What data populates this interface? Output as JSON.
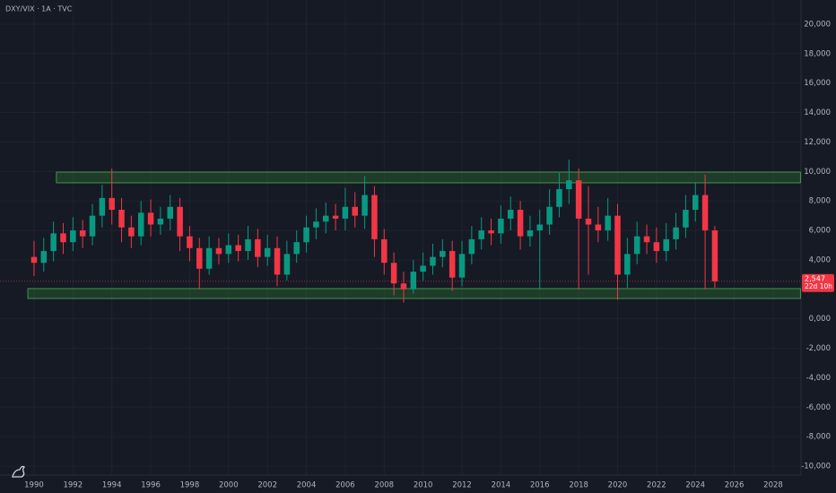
{
  "chart_data": {
    "type": "candlestick",
    "title": "DXY/VIX · 1A · TVC",
    "x": [
      1990.0,
      1990.5,
      1991.0,
      1991.5,
      1992.0,
      1992.5,
      1993.0,
      1993.5,
      1994.0,
      1994.5,
      1995.0,
      1995.5,
      1996.0,
      1996.5,
      1997.0,
      1997.5,
      1998.0,
      1998.5,
      1999.0,
      1999.5,
      2000.0,
      2000.5,
      2001.0,
      2001.5,
      2002.0,
      2002.5,
      2003.0,
      2003.5,
      2004.0,
      2004.5,
      2005.0,
      2005.5,
      2006.0,
      2006.5,
      2007.0,
      2007.5,
      2008.0,
      2008.5,
      2009.0,
      2009.5,
      2010.0,
      2010.5,
      2011.0,
      2011.5,
      2012.0,
      2012.5,
      2013.0,
      2013.5,
      2014.0,
      2014.5,
      2015.0,
      2015.5,
      2016.0,
      2016.5,
      2017.0,
      2017.5,
      2018.0,
      2018.5,
      2019.0,
      2019.5,
      2020.0,
      2020.5,
      2021.0,
      2021.5,
      2022.0,
      2022.5,
      2023.0,
      2023.5,
      2024.0,
      2024.5,
      2025.0
    ],
    "open": [
      4200,
      3800,
      4600,
      5800,
      5200,
      6000,
      5600,
      7000,
      8200,
      7400,
      6200,
      5600,
      7200,
      6400,
      6800,
      7600,
      5600,
      4800,
      3400,
      4800,
      4400,
      5000,
      4600,
      5400,
      4200,
      4800,
      3000,
      4400,
      5200,
      6200,
      6600,
      7000,
      6800,
      7600,
      7000,
      8400,
      5400,
      3800,
      2400,
      2000,
      3200,
      3600,
      4200,
      4600,
      2800,
      4400,
      5400,
      6000,
      5800,
      6800,
      7400,
      5600,
      6000,
      6400,
      7600,
      8800,
      9400,
      6800,
      6400,
      6000,
      7000,
      3000,
      4400,
      5600,
      5200,
      4600,
      5400,
      6200,
      7400,
      8400,
      6000
    ],
    "high": [
      5300,
      5500,
      6600,
      6500,
      6900,
      6700,
      7800,
      9100,
      10200,
      8200,
      7000,
      8000,
      8100,
      7600,
      8400,
      8200,
      6300,
      5500,
      5600,
      5500,
      5800,
      5700,
      6300,
      6100,
      5700,
      5600,
      5300,
      6000,
      7000,
      7500,
      7900,
      7800,
      8900,
      8600,
      9700,
      9000,
      6100,
      4500,
      3200,
      4000,
      4500,
      5100,
      5400,
      5300,
      5300,
      6300,
      6900,
      6800,
      7700,
      8300,
      8000,
      7000,
      7400,
      8800,
      9900,
      10800,
      10200,
      9000,
      7600,
      8200,
      7800,
      5500,
      6600,
      6400,
      6200,
      6500,
      7200,
      8400,
      9200,
      9800,
      6300
    ],
    "low": [
      2900,
      3200,
      3900,
      4400,
      4600,
      4800,
      5000,
      6200,
      6400,
      5200,
      4800,
      5000,
      5600,
      5700,
      6000,
      4600,
      3900,
      2000,
      3000,
      3700,
      3800,
      3900,
      4000,
      3500,
      3600,
      2200,
      2600,
      3800,
      4500,
      5400,
      5800,
      6000,
      6000,
      6200,
      6100,
      4200,
      3000,
      1600,
      1100,
      1700,
      2600,
      3000,
      3500,
      1900,
      2200,
      3700,
      4700,
      5000,
      5100,
      6000,
      4700,
      4900,
      2000,
      5700,
      6900,
      7800,
      2000,
      3000,
      5200,
      5300,
      1300,
      2100,
      3700,
      4400,
      3800,
      3900,
      4700,
      5500,
      6600,
      2000,
      2100
    ],
    "close": [
      3800,
      4600,
      5800,
      5200,
      6000,
      5600,
      7000,
      8200,
      7400,
      6200,
      5600,
      7200,
      6400,
      6800,
      7600,
      5600,
      4800,
      3400,
      4800,
      4400,
      5000,
      4600,
      5400,
      4200,
      4800,
      3000,
      4400,
      5200,
      6200,
      6600,
      7000,
      6800,
      7600,
      7000,
      8400,
      5400,
      3800,
      2400,
      2000,
      3200,
      3600,
      4200,
      4600,
      2800,
      4400,
      5400,
      6000,
      5800,
      6800,
      7400,
      5600,
      6000,
      6400,
      7600,
      8800,
      9400,
      6800,
      6400,
      6000,
      7000,
      3000,
      4400,
      5600,
      5200,
      4600,
      5400,
      6200,
      7400,
      8400,
      6000,
      2547
    ],
    "up_color": "#089981",
    "down_color": "#f23645",
    "zones": [
      {
        "low": 9230,
        "high": 9960,
        "x_start": 1991.15,
        "x_end": 2029.4
      },
      {
        "low": 1380,
        "high": 2050,
        "x_start": 1989.68,
        "x_end": 2029.4
      }
    ],
    "zone_color": "#2e7d32",
    "last_price": {
      "value": 2547,
      "label": "2,547"
    },
    "countdown": "22d 10h",
    "xlim": [
      1988.25,
      2029.43
    ],
    "xticks": [
      1990,
      1992,
      1994,
      1996,
      1998,
      2000,
      2002,
      2004,
      2006,
      2008,
      2010,
      2012,
      2014,
      2016,
      2018,
      2020,
      2022,
      2024,
      2026,
      2028
    ],
    "ylim": [
      -10609,
      21643
    ],
    "yticks": [
      {
        "value": 20000,
        "label": "20,000"
      },
      {
        "value": 18000,
        "label": "18,000"
      },
      {
        "value": 16000,
        "label": "16,000"
      },
      {
        "value": 14000,
        "label": "14,000"
      },
      {
        "value": 12000,
        "label": "12,000"
      },
      {
        "value": 10000,
        "label": "10,000"
      },
      {
        "value": 8000,
        "label": "8,000"
      },
      {
        "value": 6000,
        "label": "6,000"
      },
      {
        "value": 4000,
        "label": "4,000"
      },
      {
        "value": 0,
        "label": "0,000"
      },
      {
        "value": -2000,
        "label": "-2,000"
      },
      {
        "value": -4000,
        "label": "-4,000"
      },
      {
        "value": -6000,
        "label": "-6,000"
      },
      {
        "value": -8000,
        "label": "-8,000"
      },
      {
        "value": -10000,
        "label": "-10,000"
      }
    ],
    "grid": true
  }
}
